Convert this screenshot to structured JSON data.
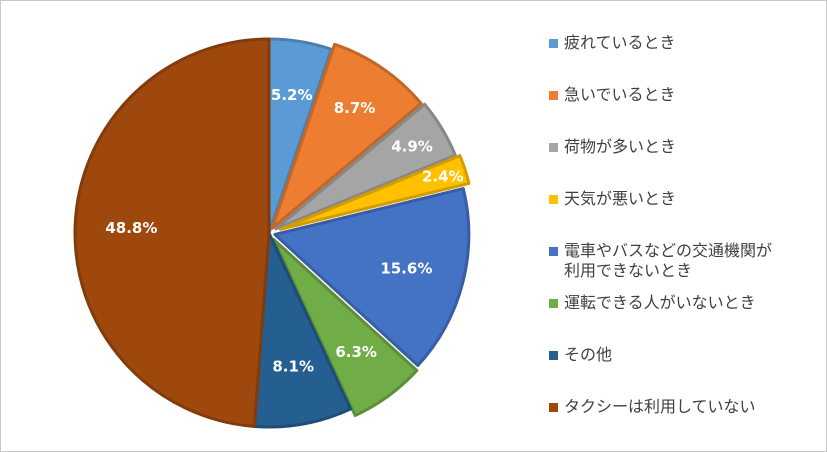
{
  "chart_data": {
    "type": "pie",
    "title": "",
    "start_angle_deg": 0,
    "direction": "clockwise",
    "slices": [
      {
        "label": "疲れているとき",
        "value": 5.2,
        "display": "5.2%",
        "color": "#5b9bd5"
      },
      {
        "label": "急いでいるとき",
        "value": 8.7,
        "display": "8.7%",
        "color": "#ed7d31"
      },
      {
        "label": "荷物が多いとき",
        "value": 4.9,
        "display": "4.9%",
        "color": "#a5a5a5"
      },
      {
        "label": "天気が悪いとき",
        "value": 2.4,
        "display": "2.4%",
        "color": "#ffc000"
      },
      {
        "label": "電車やバスなどの交通機関が利用できないとき",
        "value": 15.6,
        "display": "15.6%",
        "color": "#4472c4"
      },
      {
        "label": "運転できる人がいないとき",
        "value": 6.3,
        "display": "6.3%",
        "color": "#70ad47"
      },
      {
        "label": "その他",
        "value": 8.1,
        "display": "8.1%",
        "color": "#255e91"
      },
      {
        "label": "タクシーは利用していない",
        "value": 48.8,
        "display": "48.8%",
        "color": "#9e480e"
      }
    ],
    "legend": {
      "placement": "right",
      "entries": [
        [
          "疲れているとき"
        ],
        [
          "急いでいるとき"
        ],
        [
          "荷物が多いとき"
        ],
        [
          "天気が悪いとき"
        ],
        [
          "電車やバスなどの交通機関が",
          "利用できないとき"
        ],
        [
          "運転できる人がいないとき"
        ],
        [
          "その他"
        ],
        [
          "タクシーは利用していない"
        ]
      ]
    }
  }
}
